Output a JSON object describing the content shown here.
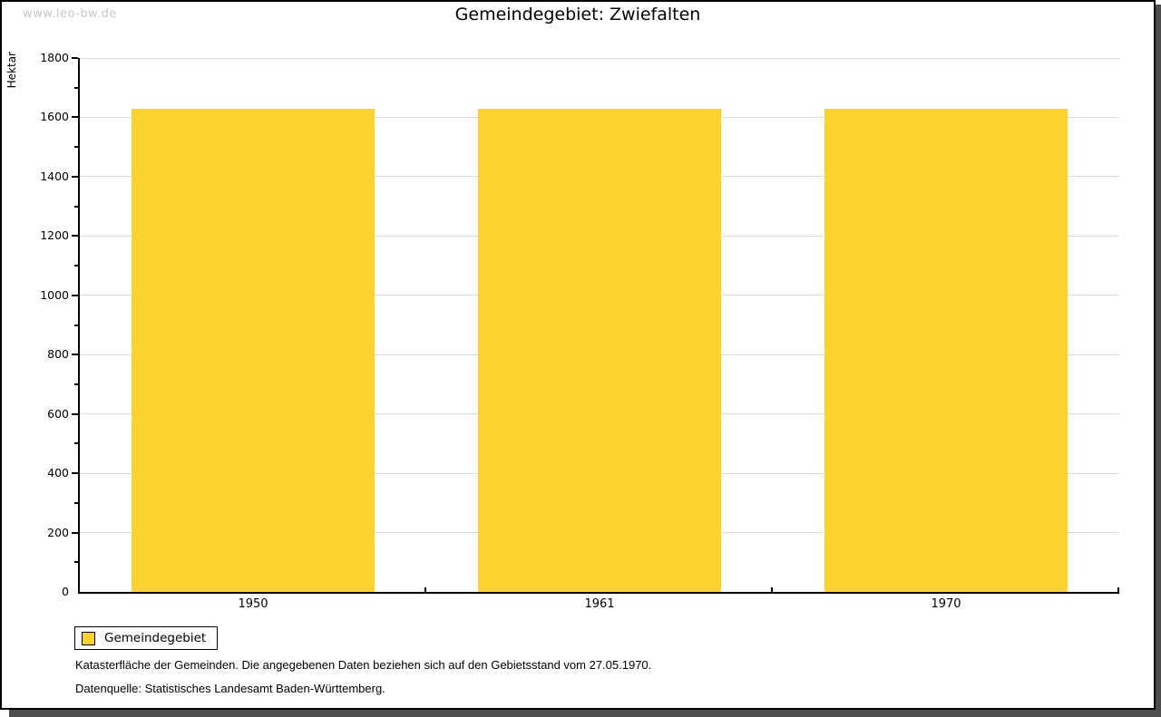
{
  "watermark": "www.leo-bw.de",
  "title": "Gemeindegebiet: Zwiefalten",
  "chart_data": {
    "type": "bar",
    "title": "Gemeindegebiet: Zwiefalten",
    "categories": [
      "1950",
      "1961",
      "1970"
    ],
    "series": [
      {
        "name": "Gemeindegebiet",
        "values": [
          1630,
          1630,
          1630
        ]
      }
    ],
    "xlabel": "",
    "ylabel": "Hektar",
    "ylim": [
      0,
      1800
    ],
    "ytick_major": 200,
    "ytick_minor": 100,
    "grid": "horizontal-major",
    "legend_position": "bottom-left",
    "bar_color": "#fcd32c"
  },
  "legend": {
    "items": [
      {
        "label": "Gemeindegebiet",
        "color": "#fcd32c"
      }
    ]
  },
  "footnotes": [
    "Katasterfläche der Gemeinden. Die angegebenen Daten beziehen sich auf den Gebietsstand vom 27.05.1970.",
    "Datenquelle: Statistisches Landesamt Baden-Württemberg."
  ],
  "colors": {
    "bar": "#fcd32c",
    "gridline": "#dcdcdc",
    "axis": "#000000",
    "text": "#000000",
    "watermark": "#c9c9c9",
    "frame_shadow": "#4e4e4e",
    "background": "#ffffff"
  }
}
